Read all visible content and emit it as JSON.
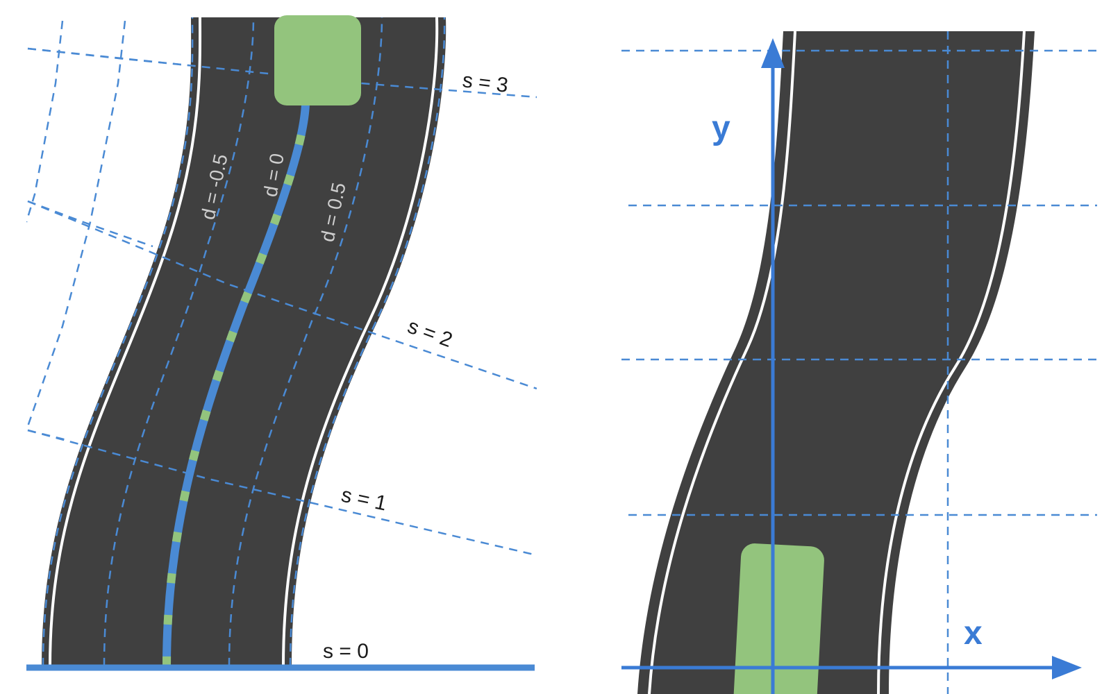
{
  "frenet_panel": {
    "s_labels": [
      "s = 0",
      "s = 1",
      "s = 2",
      "s = 3"
    ],
    "d_labels": [
      "d = -0.5",
      "d = 0",
      "d = 0.5"
    ]
  },
  "cartesian_panel": {
    "x_axis_label": "x",
    "y_axis_label": "y"
  },
  "colors": {
    "road": "#404040",
    "lane_line": "#ffffff",
    "grid": "#4a8ad4",
    "reference_path": "#4a8ad4",
    "path_marker": "#93c47d",
    "vehicle": "#93c47d",
    "axis": "#3a7bd5"
  }
}
